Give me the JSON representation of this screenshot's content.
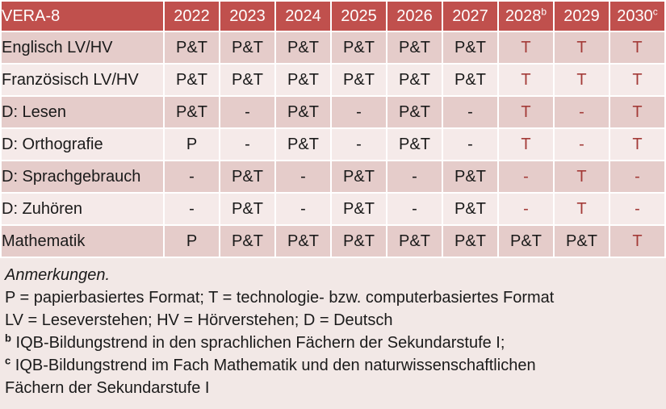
{
  "table": {
    "title": "VERA-8",
    "columns": [
      {
        "label": "2022",
        "sup": ""
      },
      {
        "label": "2023",
        "sup": ""
      },
      {
        "label": "2024",
        "sup": ""
      },
      {
        "label": "2025",
        "sup": ""
      },
      {
        "label": "2026",
        "sup": ""
      },
      {
        "label": "2027",
        "sup": ""
      },
      {
        "label": "2028",
        "sup": "b"
      },
      {
        "label": "2029",
        "sup": ""
      },
      {
        "label": "2030",
        "sup": "c"
      }
    ],
    "rows": [
      {
        "label": "Englisch LV/HV",
        "cells": [
          {
            "v": "P&T",
            "red": false
          },
          {
            "v": "P&T",
            "red": false
          },
          {
            "v": "P&T",
            "red": false
          },
          {
            "v": "P&T",
            "red": false
          },
          {
            "v": "P&T",
            "red": false
          },
          {
            "v": "P&T",
            "red": false
          },
          {
            "v": "T",
            "red": true
          },
          {
            "v": "T",
            "red": true
          },
          {
            "v": "T",
            "red": true
          }
        ]
      },
      {
        "label": "Französisch LV/HV",
        "cells": [
          {
            "v": "P&T",
            "red": false
          },
          {
            "v": "P&T",
            "red": false
          },
          {
            "v": "P&T",
            "red": false
          },
          {
            "v": "P&T",
            "red": false
          },
          {
            "v": "P&T",
            "red": false
          },
          {
            "v": "P&T",
            "red": false
          },
          {
            "v": "T",
            "red": true
          },
          {
            "v": "T",
            "red": true
          },
          {
            "v": "T",
            "red": true
          }
        ]
      },
      {
        "label": "D: Lesen",
        "cells": [
          {
            "v": "P&T",
            "red": false
          },
          {
            "v": "-",
            "red": false
          },
          {
            "v": "P&T",
            "red": false
          },
          {
            "v": "-",
            "red": false
          },
          {
            "v": "P&T",
            "red": false
          },
          {
            "v": "-",
            "red": false
          },
          {
            "v": "T",
            "red": true
          },
          {
            "v": "-",
            "red": true
          },
          {
            "v": "T",
            "red": true
          }
        ]
      },
      {
        "label": "D: Orthografie",
        "cells": [
          {
            "v": "P",
            "red": false
          },
          {
            "v": "-",
            "red": false
          },
          {
            "v": "P&T",
            "red": false
          },
          {
            "v": "-",
            "red": false
          },
          {
            "v": "P&T",
            "red": false
          },
          {
            "v": "-",
            "red": false
          },
          {
            "v": "T",
            "red": true
          },
          {
            "v": "-",
            "red": true
          },
          {
            "v": "T",
            "red": true
          }
        ]
      },
      {
        "label": "D: Sprachgebrauch",
        "cells": [
          {
            "v": "-",
            "red": false
          },
          {
            "v": "P&T",
            "red": false
          },
          {
            "v": "-",
            "red": false
          },
          {
            "v": "P&T",
            "red": false
          },
          {
            "v": "-",
            "red": false
          },
          {
            "v": "P&T",
            "red": false
          },
          {
            "v": "-",
            "red": true
          },
          {
            "v": "T",
            "red": true
          },
          {
            "v": "-",
            "red": true
          }
        ]
      },
      {
        "label": "D: Zuhören",
        "cells": [
          {
            "v": "-",
            "red": false
          },
          {
            "v": "P&T",
            "red": false
          },
          {
            "v": "-",
            "red": false
          },
          {
            "v": "P&T",
            "red": false
          },
          {
            "v": "-",
            "red": false
          },
          {
            "v": "P&T",
            "red": false
          },
          {
            "v": "-",
            "red": true
          },
          {
            "v": "T",
            "red": true
          },
          {
            "v": "-",
            "red": true
          }
        ]
      },
      {
        "label": "Mathematik",
        "cells": [
          {
            "v": "P",
            "red": false
          },
          {
            "v": "P&T",
            "red": false
          },
          {
            "v": "P&T",
            "red": false
          },
          {
            "v": "P&T",
            "red": false
          },
          {
            "v": "P&T",
            "red": false
          },
          {
            "v": "P&T",
            "red": false
          },
          {
            "v": "P&T",
            "red": false
          },
          {
            "v": "P&T",
            "red": false
          },
          {
            "v": "T",
            "red": true
          }
        ]
      }
    ]
  },
  "notes": {
    "lines": [
      {
        "sup": "",
        "italic": true,
        "text": "Anmerkungen."
      },
      {
        "sup": "",
        "italic": false,
        "text": "P = papierbasiertes Format; T = technologie- bzw. computerbasiertes Format"
      },
      {
        "sup": "",
        "italic": false,
        "text": "LV = Leseverstehen; HV = Hörverstehen; D = Deutsch"
      },
      {
        "sup": "b",
        "italic": false,
        "text": "IQB-Bildungstrend in den sprachlichen Fächern der Sekundarstufe I;"
      },
      {
        "sup": "c",
        "italic": false,
        "text": "IQB-Bildungstrend im Fach Mathematik und den naturwissenschaftlichen"
      },
      {
        "sup": "",
        "italic": false,
        "text": "Fächern der Sekundarstufe I"
      }
    ]
  },
  "colors": {
    "page_bg": "#f2e8e6",
    "header_bg": "#c0504d",
    "band_dark": "#e5ccca",
    "band_light": "#f5eae9",
    "grid": "#ffffff",
    "accent_text": "#a33b38",
    "header_text": "#ffffff"
  }
}
